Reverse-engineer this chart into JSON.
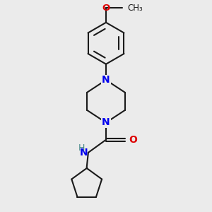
{
  "background_color": "#ebebeb",
  "bond_color": "#1a1a1a",
  "N_color": "#0000ee",
  "O_color": "#dd0000",
  "H_color": "#448888",
  "line_width": 1.5,
  "figsize": [
    3.0,
    3.0
  ],
  "dpi": 100,
  "xlim": [
    -1.6,
    1.6
  ],
  "ylim": [
    -2.8,
    4.0
  ]
}
